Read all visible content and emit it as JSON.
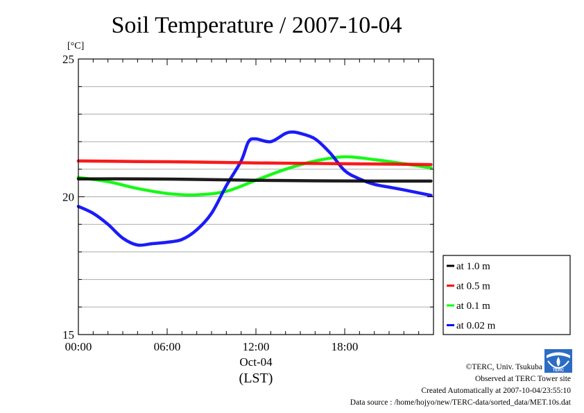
{
  "chart_data": {
    "type": "line",
    "title": "Soil Temperature / 2007-10-04",
    "ylabel": "[°C]",
    "xlabel": "(LST)",
    "x_date_label": "Oct-04",
    "ylim": [
      15,
      25
    ],
    "y_ticks": [
      15,
      20,
      25
    ],
    "x_range": [
      "00:00",
      "24:00"
    ],
    "x_ticks": [
      "00:00",
      "06:00",
      "12:00",
      "18:00"
    ],
    "grid": true,
    "legend_position": "right",
    "series": [
      {
        "name": "at 1.0 m",
        "color": "#000000",
        "x": [
          "00:00",
          "04:00",
          "08:00",
          "12:00",
          "16:00",
          "20:00",
          "23:50"
        ],
        "values": [
          20.65,
          20.65,
          20.63,
          20.6,
          20.58,
          20.57,
          20.57
        ]
      },
      {
        "name": "at 0.5 m",
        "color": "#ff0000",
        "x": [
          "00:00",
          "04:00",
          "08:00",
          "12:00",
          "16:00",
          "20:00",
          "23:50"
        ],
        "values": [
          21.3,
          21.28,
          21.26,
          21.23,
          21.21,
          21.19,
          21.17
        ]
      },
      {
        "name": "at 0.1 m",
        "color": "#00ff00",
        "x": [
          "00:00",
          "02:00",
          "04:00",
          "06:00",
          "08:00",
          "10:00",
          "12:00",
          "14:00",
          "16:00",
          "18:00",
          "20:00",
          "22:00",
          "23:50"
        ],
        "values": [
          20.7,
          20.55,
          20.3,
          20.12,
          20.07,
          20.2,
          20.6,
          21.0,
          21.3,
          21.45,
          21.35,
          21.2,
          21.05
        ]
      },
      {
        "name": "at 0.02 m",
        "color": "#0000ff",
        "x": [
          "00:00",
          "01:00",
          "02:00",
          "03:00",
          "04:00",
          "05:00",
          "06:00",
          "07:00",
          "08:00",
          "09:00",
          "10:00",
          "11:00",
          "11:30",
          "12:00",
          "13:00",
          "14:00",
          "14:30",
          "15:00",
          "16:00",
          "17:00",
          "18:00",
          "19:00",
          "20:00",
          "21:00",
          "22:00",
          "23:50"
        ],
        "values": [
          19.65,
          19.4,
          19.0,
          18.5,
          18.25,
          18.3,
          18.35,
          18.45,
          18.8,
          19.4,
          20.4,
          21.3,
          22.0,
          22.1,
          22.0,
          22.3,
          22.35,
          22.3,
          22.1,
          21.6,
          20.95,
          20.65,
          20.45,
          20.35,
          20.25,
          20.05
        ]
      }
    ]
  },
  "credits": {
    "copyright": "©TERC, Univ. Tsukuba",
    "observed": "Observed at TERC Tower site",
    "created": "Created Automatically at 2007-10-04/23:55:10",
    "source": "Data source : /home/hojyo/new/TERC-data/sorted_data/MET.10s.dat",
    "logo_text": "TERC"
  }
}
